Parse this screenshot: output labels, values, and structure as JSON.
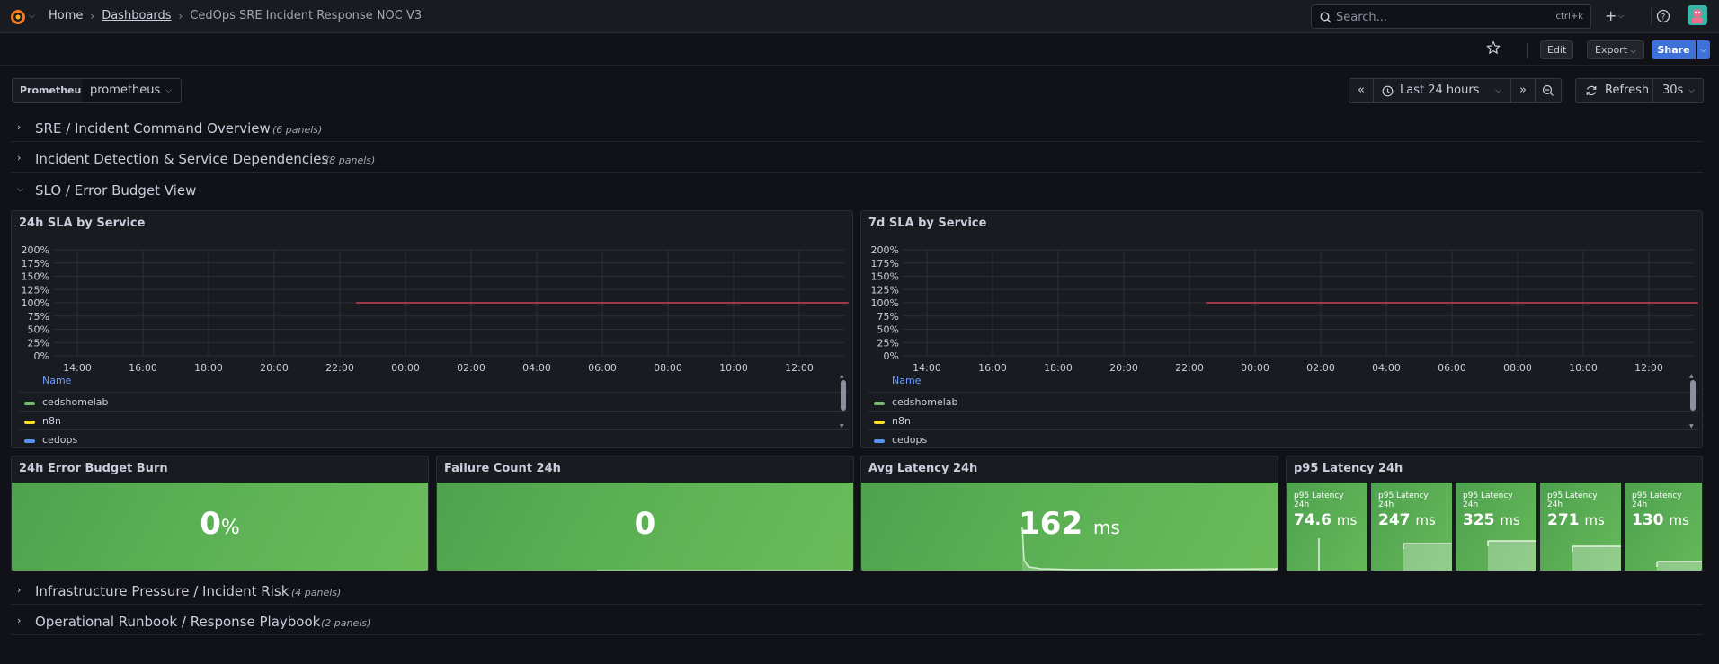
{
  "breadcrumb": {
    "home": "Home",
    "dashboards": "Dashboards",
    "title": "CedOps SRE Incident Response NOC V3"
  },
  "search": {
    "placeholder": "Search...",
    "shortcut": "ctrl+k"
  },
  "actions": {
    "edit": "Edit",
    "export": "Export",
    "share": "Share"
  },
  "variables": {
    "datasource_label": "Prometheus",
    "datasource_value": "prometheus"
  },
  "time": {
    "range": "Last 24 hours",
    "refresh_label": "Refresh",
    "refresh_interval": "30s"
  },
  "rows": [
    {
      "title": "SRE / Incident Command Overview",
      "count": "(6 panels)",
      "collapsed": true
    },
    {
      "title": "Incident Detection & Service Dependencies",
      "count": "(8 panels)",
      "collapsed": true
    },
    {
      "title": "SLO / Error Budget View",
      "collapsed": false
    },
    {
      "title": "Infrastructure Pressure / Incident Risk",
      "count": "(4 panels)",
      "collapsed": true
    },
    {
      "title": "Operational Runbook / Response Playbook",
      "count": "(2 panels)",
      "collapsed": true
    }
  ],
  "panels": {
    "sla24h": {
      "title": "24h SLA by Service"
    },
    "sla7d": {
      "title": "7d SLA by Service"
    },
    "legend": {
      "header": "Name",
      "items": [
        {
          "name": "cedshomelab",
          "color": "#73bf69"
        },
        {
          "name": "n8n",
          "color": "#fade2a"
        },
        {
          "name": "cedops",
          "color": "#5794f2"
        }
      ]
    },
    "error_budget": {
      "title": "24h Error Budget Burn",
      "value": "0",
      "unit": "%"
    },
    "failure_count": {
      "title": "Failure Count 24h",
      "value": "0"
    },
    "avg_latency": {
      "title": "Avg Latency 24h",
      "value": "162",
      "unit": "ms"
    },
    "p95_latency": {
      "title": "p95 Latency 24h",
      "items": [
        {
          "title": "p95 Latency 24h",
          "value": "74.6",
          "unit": "ms",
          "level": 0.0
        },
        {
          "title": "p95 Latency 24h",
          "value": "247",
          "unit": "ms",
          "level": 0.55
        },
        {
          "title": "p95 Latency 24h",
          "value": "325",
          "unit": "ms",
          "level": 0.6
        },
        {
          "title": "p95 Latency 24h",
          "value": "271",
          "unit": "ms",
          "level": 0.5
        },
        {
          "title": "p95 Latency 24h",
          "value": "130",
          "unit": "ms",
          "level": 0.2
        }
      ]
    }
  },
  "chart_data": [
    {
      "type": "line",
      "title": "24h SLA by Service",
      "ylim": [
        0,
        200
      ],
      "y_ticks": [
        "200%",
        "175%",
        "150%",
        "125%",
        "100%",
        "75%",
        "50%",
        "25%",
        "0%"
      ],
      "x_ticks": [
        "14:00",
        "16:00",
        "18:00",
        "20:00",
        "22:00",
        "00:00",
        "02:00",
        "04:00",
        "06:00",
        "08:00",
        "10:00",
        "12:00"
      ],
      "series": [
        {
          "name": "cedshomelab",
          "color": "#f2495c",
          "x": [
            "22:30",
            "13:30"
          ],
          "values": [
            100,
            100
          ]
        }
      ],
      "grid": true
    },
    {
      "type": "line",
      "title": "7d SLA by Service",
      "ylim": [
        0,
        200
      ],
      "y_ticks": [
        "200%",
        "175%",
        "150%",
        "125%",
        "100%",
        "75%",
        "50%",
        "25%",
        "0%"
      ],
      "x_ticks": [
        "14:00",
        "16:00",
        "18:00",
        "20:00",
        "22:00",
        "00:00",
        "02:00",
        "04:00",
        "06:00",
        "08:00",
        "10:00",
        "12:00"
      ],
      "series": [
        {
          "name": "cedshomelab",
          "color": "#f2495c",
          "x": [
            "22:30",
            "13:30"
          ],
          "values": [
            100,
            100
          ]
        }
      ],
      "grid": true
    }
  ]
}
